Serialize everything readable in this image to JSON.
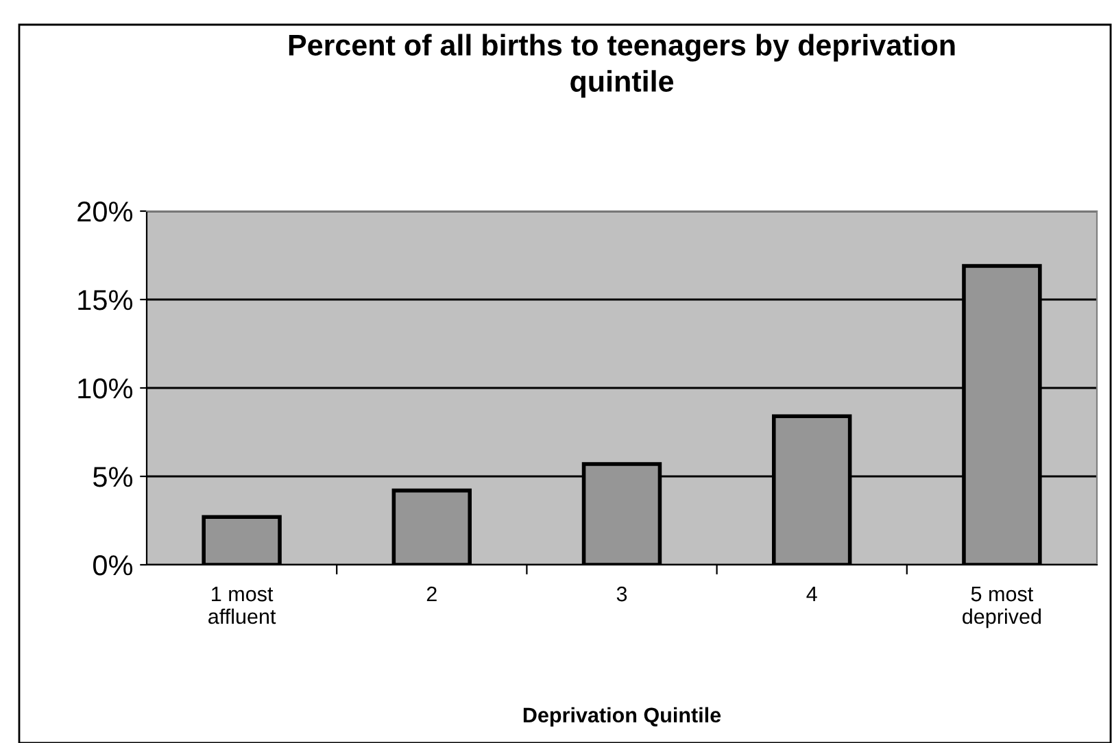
{
  "chart_data": {
    "type": "bar",
    "title": "Percent of all births to teenagers by deprivation\nquintile",
    "xlabel": "Deprivation Quintile",
    "categories": [
      "1 most\naffluent",
      "2",
      "3",
      "4",
      "5 most\ndeprived"
    ],
    "values": [
      2.7,
      4.2,
      5.7,
      8.4,
      16.9
    ],
    "color": "#969696",
    "ylim": [
      0,
      20
    ],
    "yticks": [
      {
        "value": 0,
        "label": "0%"
      },
      {
        "value": 5,
        "label": "5%"
      },
      {
        "value": 10,
        "label": "10%"
      },
      {
        "value": 15,
        "label": "15%"
      },
      {
        "value": 20,
        "label": "20%"
      }
    ],
    "grid": "y"
  }
}
